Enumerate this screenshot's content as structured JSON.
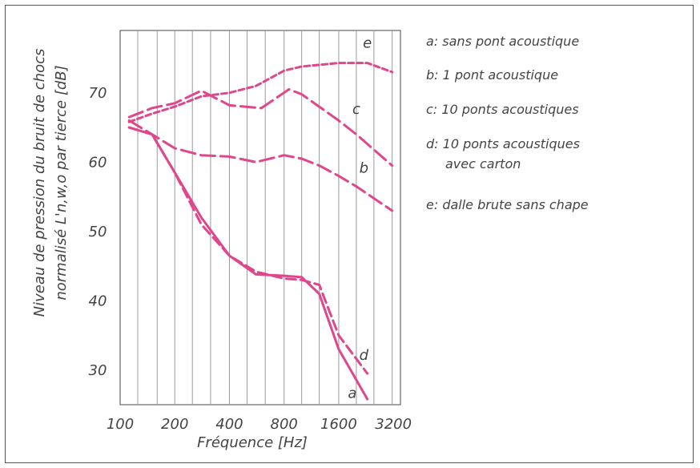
{
  "chart_data": {
    "type": "line",
    "xlabel": "Fréquence [Hz]",
    "ylabel_line1": "Niveau de pression du bruit de chocs",
    "ylabel_line2": "normalisé L'n,w,o par tierce [dB]",
    "x_ticks": [
      "100",
      "200",
      "400",
      "800",
      "1600",
      "3200"
    ],
    "y_ticks": [
      "30",
      "40",
      "50",
      "60",
      "70"
    ],
    "xlim": [
      100,
      3500
    ],
    "ylim": [
      25,
      79
    ],
    "x_scale": "log",
    "grid": "vertical lines at third-octave frequencies",
    "grid_x": [
      125,
      160,
      200,
      250,
      315,
      400,
      500,
      630,
      800,
      1000,
      1250,
      1600,
      2000,
      2500,
      3150
    ],
    "legend": [
      {
        "key": "a",
        "label": "a: sans pont acoustique"
      },
      {
        "key": "b",
        "label": "b: 1 pont acoustique"
      },
      {
        "key": "c",
        "label": "c: 10 ponts acoustiques"
      },
      {
        "key": "d",
        "label": "d: 10 ponts acoustiques",
        "label2": "avec carton"
      },
      {
        "key": "e",
        "label": "e: dalle brute sans chape"
      }
    ],
    "series": [
      {
        "name": "a",
        "style": "solid",
        "points": [
          [
            112,
            65
          ],
          [
            150,
            64
          ],
          [
            200,
            58.5
          ],
          [
            280,
            52
          ],
          [
            400,
            46.5
          ],
          [
            560,
            43.8
          ],
          [
            800,
            43.6
          ],
          [
            1000,
            43.4
          ],
          [
            1250,
            41
          ],
          [
            1600,
            33
          ],
          [
            2300,
            25.8
          ]
        ]
      },
      {
        "name": "b",
        "style": "longdash",
        "points": [
          [
            112,
            66
          ],
          [
            150,
            64
          ],
          [
            200,
            62
          ],
          [
            280,
            61
          ],
          [
            400,
            60.8
          ],
          [
            560,
            60
          ],
          [
            800,
            61
          ],
          [
            1000,
            60.5
          ],
          [
            1250,
            59.5
          ],
          [
            1600,
            58
          ],
          [
            2000,
            56.5
          ],
          [
            3150,
            53
          ]
        ]
      },
      {
        "name": "c",
        "style": "longdash",
        "points": [
          [
            112,
            66.5
          ],
          [
            150,
            67.8
          ],
          [
            200,
            68.5
          ],
          [
            280,
            70.3
          ],
          [
            400,
            68.2
          ],
          [
            600,
            67.8
          ],
          [
            850,
            70.5
          ],
          [
            1000,
            69.8
          ],
          [
            1600,
            66
          ],
          [
            2000,
            64
          ],
          [
            3150,
            59.5
          ]
        ]
      },
      {
        "name": "d",
        "style": "dash",
        "points": [
          [
            112,
            65
          ],
          [
            150,
            64
          ],
          [
            200,
            58.5
          ],
          [
            280,
            51
          ],
          [
            400,
            46.5
          ],
          [
            560,
            44.2
          ],
          [
            800,
            43.2
          ],
          [
            1000,
            43
          ],
          [
            1250,
            42.3
          ],
          [
            1600,
            35
          ],
          [
            2300,
            29.5
          ]
        ]
      },
      {
        "name": "e",
        "style": "shortdash",
        "points": [
          [
            112,
            65.8
          ],
          [
            150,
            67
          ],
          [
            200,
            68
          ],
          [
            280,
            69.5
          ],
          [
            400,
            70
          ],
          [
            560,
            71
          ],
          [
            800,
            73.2
          ],
          [
            1000,
            73.8
          ],
          [
            1600,
            74.3
          ],
          [
            2300,
            74.3
          ],
          [
            3150,
            73
          ]
        ]
      }
    ],
    "curve_labels": [
      "a",
      "b",
      "c",
      "d",
      "e"
    ],
    "color": "#e0468c"
  }
}
